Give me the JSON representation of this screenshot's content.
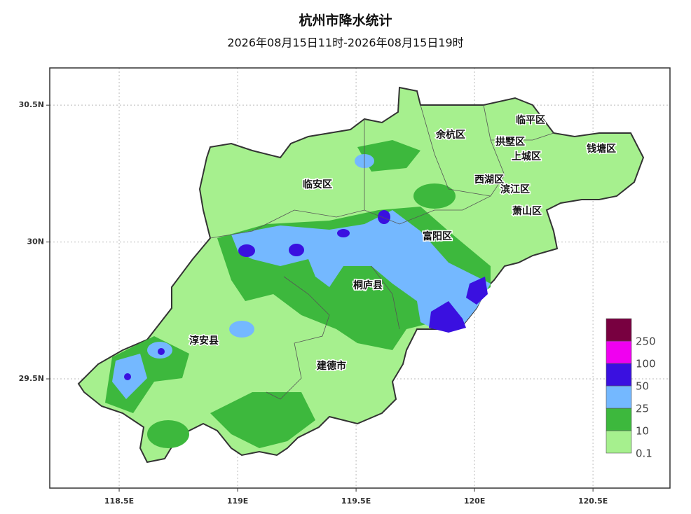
{
  "title": "杭州市降水统计",
  "subtitle": "2026年08月15日11时-2026年08月15日19时",
  "map": {
    "xlim": [
      118.207,
      120.825
    ],
    "ylim": [
      29.101,
      30.636
    ],
    "xticks": [
      {
        "value": 118.5,
        "label": "118.5E"
      },
      {
        "value": 119,
        "label": "119E"
      },
      {
        "value": 119.5,
        "label": "119.5E"
      },
      {
        "value": 120,
        "label": "120E"
      },
      {
        "value": 120.5,
        "label": "120.5E"
      }
    ],
    "yticks": [
      {
        "value": 29.5,
        "label": "29.5N"
      },
      {
        "value": 30,
        "label": "30N"
      },
      {
        "value": 30.5,
        "label": "30.5N"
      }
    ],
    "districts": [
      "余杭区",
      "临平区",
      "拱墅区",
      "上城区",
      "钱塘区",
      "西湖区",
      "滨江区",
      "临安区",
      "萧山区",
      "富阳区",
      "桐庐县",
      "淳安县",
      "建德市"
    ]
  },
  "legend": {
    "labels": [
      "0.1",
      "10",
      "25",
      "50",
      "100",
      "250"
    ],
    "colors": [
      "#a6f08e",
      "#3db83d",
      "#74b8ff",
      "#3a10e0",
      "#f000f0",
      "#780040"
    ]
  }
}
